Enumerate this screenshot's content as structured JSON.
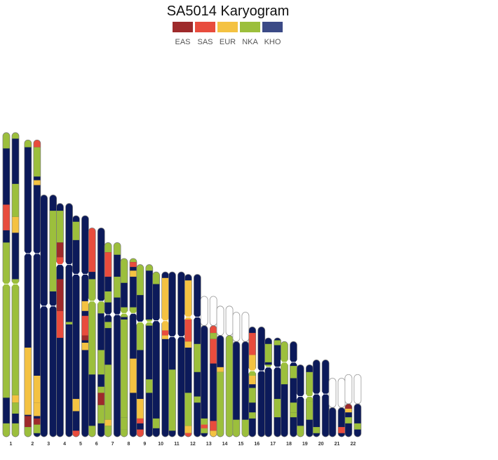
{
  "chart_data": {
    "type": "karyogram",
    "title": "SA5014 Karyogram",
    "legend": [
      {
        "label": "EAS",
        "color": "#9e2a2b"
      },
      {
        "label": "SAS",
        "color": "#e84c3d"
      },
      {
        "label": "EUR",
        "color": "#f4c242"
      },
      {
        "label": "NKA",
        "color": "#9cbf3c"
      },
      {
        "label": "KHO",
        "color": "#3b4a86"
      }
    ],
    "background_color": "#0c1a5a",
    "units": "Mb",
    "chromosomes": [
      {
        "label": "1",
        "length": 249,
        "centromere": 124,
        "acro": false,
        "hapA": [
          [
            0,
            13,
            "NKA"
          ],
          [
            59,
            80,
            "SAS"
          ],
          [
            90,
            217,
            "NKA"
          ],
          [
            238,
            249,
            "NKA"
          ]
        ],
        "hapB": [
          [
            0,
            5,
            "NKA"
          ],
          [
            42,
            69,
            "NKA"
          ],
          [
            69,
            82,
            "EUR"
          ],
          [
            120,
            215,
            "NKA"
          ],
          [
            215,
            221,
            "EUR"
          ],
          [
            221,
            230,
            "NKA"
          ],
          [
            238,
            249,
            "NKA"
          ]
        ]
      },
      {
        "label": "2",
        "length": 243,
        "centromere": 93,
        "acro": false,
        "hapA": [
          [
            0,
            6,
            "NKA"
          ],
          [
            170,
            225,
            "EUR"
          ],
          [
            226,
            235,
            "EAS"
          ],
          [
            235,
            243,
            "NKA"
          ]
        ],
        "hapB": [
          [
            0,
            6,
            "SAS"
          ],
          [
            6,
            30,
            "NKA"
          ],
          [
            33,
            37,
            "EUR"
          ],
          [
            193,
            215,
            "EUR"
          ],
          [
            215,
            226,
            "EUR"
          ],
          [
            228,
            233,
            "EAS"
          ],
          [
            233,
            240,
            "NKA"
          ]
        ]
      },
      {
        "label": "3",
        "length": 198,
        "centromere": 91,
        "acro": false,
        "hapA": [],
        "hapB": [
          [
            13,
            79,
            "NKA"
          ]
        ]
      },
      {
        "label": "4",
        "length": 191,
        "centromere": 50,
        "acro": false,
        "hapA": [
          [
            6,
            32,
            "NKA"
          ],
          [
            32,
            44,
            "EAS"
          ],
          [
            44,
            50,
            "SAS"
          ],
          [
            62,
            88,
            "EAS"
          ],
          [
            88,
            110,
            "SAS"
          ]
        ],
        "hapB": [
          [
            97,
            99,
            "NKA"
          ]
        ]
      },
      {
        "label": "5",
        "length": 181,
        "centromere": 48,
        "acro": false,
        "hapA": [
          [
            5,
            20,
            "NKA"
          ],
          [
            150,
            160,
            "EUR"
          ],
          [
            176,
            181,
            "SAS"
          ]
        ],
        "hapB": [
          [
            70,
            78,
            "EUR"
          ],
          [
            82,
            100,
            "SAS"
          ],
          [
            98,
            102,
            "EAS"
          ],
          [
            104,
            110,
            "EUR"
          ]
        ]
      },
      {
        "label": "6",
        "length": 171,
        "centromere": 60,
        "acro": false,
        "hapA": [
          [
            0,
            36,
            "SAS"
          ],
          [
            42,
            120,
            "NKA"
          ],
          [
            162,
            171,
            "NKA"
          ]
        ],
        "hapB": [
          [
            60,
            70,
            "NKA"
          ],
          [
            100,
            120,
            "NKA"
          ],
          [
            130,
            140,
            "NKA"
          ],
          [
            135,
            145,
            "EAS"
          ],
          [
            145,
            160,
            "NKA"
          ]
        ]
      },
      {
        "label": "7",
        "length": 159,
        "centromere": 59,
        "acro": false,
        "hapA": [
          [
            0,
            8,
            "NKA"
          ],
          [
            8,
            28,
            "SAS"
          ],
          [
            40,
            49,
            "NKA"
          ],
          [
            65,
            70,
            "NKA"
          ],
          [
            100,
            145,
            "NKA"
          ],
          [
            145,
            150,
            "EUR"
          ],
          [
            150,
            159,
            "NKA"
          ]
        ],
        "hapB": [
          [
            0,
            10,
            "NKA"
          ],
          [
            28,
            45,
            "NKA"
          ]
        ]
      },
      {
        "label": "8",
        "length": 146,
        "centromere": 45,
        "acro": false,
        "hapA": [
          [
            0,
            20,
            "NKA"
          ],
          [
            40,
            48,
            "NKA"
          ],
          [
            50,
            130,
            "NKA"
          ],
          [
            130,
            140,
            "NKA"
          ],
          [
            140,
            146,
            "NKA"
          ]
        ],
        "hapB": [
          [
            0,
            3,
            "NKA"
          ],
          [
            3,
            7,
            "SAS"
          ],
          [
            10,
            15,
            "EUR"
          ],
          [
            40,
            45,
            "NKA"
          ],
          [
            82,
            110,
            "EUR"
          ],
          [
            105,
            108,
            "EUR"
          ]
        ]
      },
      {
        "label": "9",
        "length": 141,
        "centromere": 47,
        "acro": false,
        "hapA": [
          [
            0,
            25,
            "NKA"
          ],
          [
            47,
            70,
            "NKA"
          ],
          [
            110,
            126,
            "EUR"
          ],
          [
            126,
            130,
            "SAS"
          ],
          [
            135,
            141,
            "SAS"
          ]
        ],
        "hapB": [
          [
            0,
            5,
            "NKA"
          ],
          [
            45,
            50,
            "NKA"
          ],
          [
            94,
            105,
            "NKA"
          ]
        ]
      },
      {
        "label": "10",
        "length": 135,
        "centromere": 40,
        "acro": false,
        "hapA": [
          [
            0,
            10,
            "NKA"
          ],
          [
            120,
            128,
            "NKA"
          ]
        ],
        "hapB": [
          [
            5,
            48,
            "EUR"
          ],
          [
            48,
            52,
            "SAS"
          ],
          [
            52,
            55,
            "EUR"
          ]
        ]
      },
      {
        "label": "11",
        "length": 135,
        "centromere": 53,
        "acro": false,
        "hapA": [
          [
            80,
            130,
            "NKA"
          ]
        ],
        "hapB": []
      },
      {
        "label": "12",
        "length": 133,
        "centromere": 35,
        "acro": false,
        "hapA": [
          [
            5,
            37,
            "EUR"
          ],
          [
            37,
            55,
            "SAS"
          ],
          [
            55,
            60,
            "EUR"
          ],
          [
            97,
            124,
            "NKA"
          ],
          [
            124,
            130,
            "EUR"
          ],
          [
            130,
            133,
            "SAS"
          ]
        ],
        "hapB": [
          [
            57,
            80,
            "NKA"
          ],
          [
            100,
            105,
            "NKA"
          ]
        ]
      },
      {
        "label": "13",
        "length": 115,
        "centromere": 16,
        "acro": true,
        "hapA": [
          [
            0,
            2,
            "NKA"
          ],
          [
            100,
            112,
            "NKA"
          ],
          [
            105,
            108,
            "SAS"
          ]
        ],
        "hapB": [
          [
            0,
            5,
            "EUR"
          ],
          [
            5,
            30,
            "SAS"
          ],
          [
            30,
            35,
            "NKA"
          ],
          [
            35,
            55,
            "SAS"
          ],
          [
            102,
            110,
            "SAS"
          ],
          [
            110,
            115,
            "EUR"
          ]
        ]
      },
      {
        "label": "14",
        "length": 107,
        "centromere": 16,
        "acro": true,
        "hapA": [
          [
            50,
            54,
            "EUR"
          ],
          [
            54,
            107,
            "NKA"
          ]
        ],
        "hapB": [
          [
            0,
            107,
            "NKA"
          ]
        ]
      },
      {
        "label": "15",
        "length": 102,
        "centromere": 16,
        "acro": true,
        "hapA": [
          [
            0,
            5,
            "NKA"
          ],
          [
            88,
            102,
            "NKA"
          ]
        ],
        "hapB": [
          [
            0,
            7,
            "SAS"
          ],
          [
            7,
            15,
            "NKA"
          ],
          [
            88,
            102,
            "NKA"
          ]
        ]
      },
      {
        "label": "16",
        "length": 90,
        "centromere": 36,
        "acro": false,
        "hapA": [
          [
            5,
            23,
            "SAS"
          ],
          [
            23,
            36,
            "EUR"
          ],
          [
            36,
            45,
            "NKA"
          ],
          [
            40,
            47,
            "EUR"
          ],
          [
            50,
            62,
            "NKA"
          ],
          [
            70,
            75,
            "NKA"
          ]
        ],
        "hapB": []
      },
      {
        "label": "17",
        "length": 81,
        "centromere": 24,
        "acro": false,
        "hapA": [
          [
            5,
            20,
            "NKA"
          ],
          [
            22,
            24,
            "NKA"
          ]
        ],
        "hapB": [
          [
            2,
            6,
            "NKA"
          ],
          [
            50,
            65,
            "NKA"
          ]
        ]
      },
      {
        "label": "18",
        "length": 78,
        "centromere": 17,
        "acro": false,
        "hapA": [
          [
            0,
            17,
            "NKA"
          ],
          [
            17,
            35,
            "NKA"
          ]
        ],
        "hapB": [
          [
            20,
            30,
            "NKA"
          ],
          [
            50,
            58,
            "NKA"
          ],
          [
            58,
            62,
            "NKA"
          ]
        ]
      },
      {
        "label": "19",
        "length": 59,
        "centromere": 26,
        "acro": false,
        "hapA": [
          [
            50,
            59,
            "NKA"
          ]
        ],
        "hapB": [
          [
            6,
            30,
            "NKA"
          ],
          [
            30,
            34,
            "NKA"
          ],
          [
            34,
            45,
            "NKA"
          ]
        ]
      },
      {
        "label": "20",
        "length": 63,
        "centromere": 28,
        "acro": false,
        "hapA": [
          [
            55,
            60,
            "NKA"
          ]
        ],
        "hapB": []
      },
      {
        "label": "21",
        "length": 48,
        "centromere": 13,
        "acro": true,
        "hapA": [],
        "hapB": [
          [
            40,
            45,
            "SAS"
          ]
        ]
      },
      {
        "label": "22",
        "length": 51,
        "centromere": 15,
        "acro": true,
        "hapA": [
          [
            23,
            28,
            "EAS"
          ],
          [
            28,
            31,
            "EUR"
          ],
          [
            35,
            40,
            "NKA"
          ]
        ],
        "hapB": [
          [
            18,
            22,
            "EUR"
          ],
          [
            40,
            45,
            "NKA"
          ]
        ]
      }
    ]
  }
}
